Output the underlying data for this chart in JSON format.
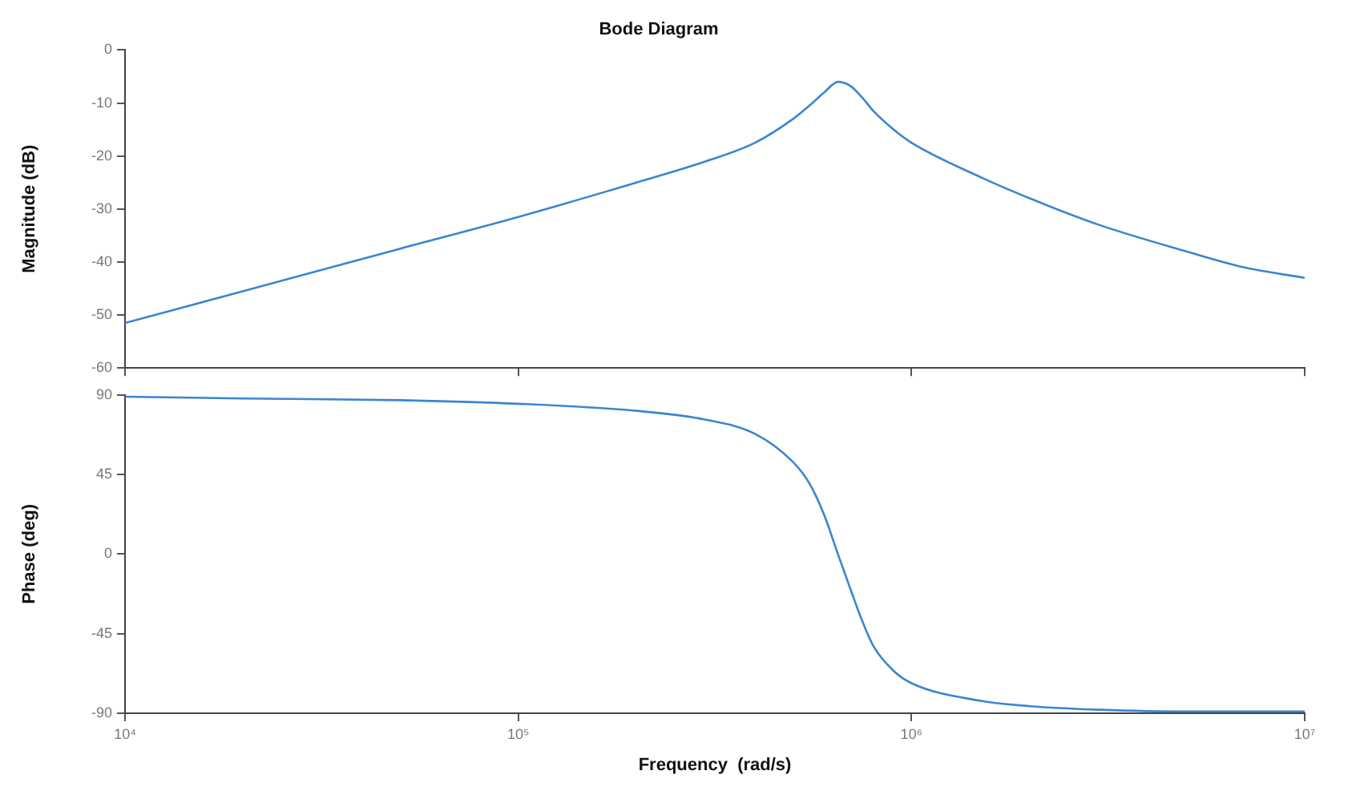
{
  "chart_data": [
    {
      "type": "line",
      "title": "Bode Diagram",
      "ylabel": "Magnitude (dB)",
      "log": "x",
      "grid": false,
      "legend": false,
      "tick_labels": "y",
      "marker": "none",
      "line_style": "solid",
      "x": [
        10000,
        20000,
        50000,
        100000,
        200000,
        300000,
        400000,
        500000,
        550000,
        600000,
        650000,
        700000,
        750000,
        800000,
        900000,
        1000000,
        1500000,
        2000000,
        3000000,
        5000000,
        7000000,
        10000000
      ],
      "series": [
        {
          "color": "#3a86d0",
          "values": [
            -51.5,
            -45.5,
            -37.5,
            -31.5,
            -25,
            -21,
            -17.5,
            -13,
            -10.5,
            -8,
            -6,
            -6.8,
            -9,
            -11.5,
            -15,
            -17.5,
            -24,
            -28,
            -33,
            -38,
            -41,
            -43
          ]
        }
      ],
      "xlim": [
        10000,
        10000000
      ],
      "xticks": [
        10000,
        100000,
        1000000,
        10000000
      ],
      "ylim": [
        -60,
        0
      ],
      "yticks": [
        0,
        -10,
        -20,
        -30,
        -40,
        -50,
        -60
      ]
    },
    {
      "type": "line",
      "xlabel": "Frequency  (rad/s)",
      "ylabel": "Phase (deg)",
      "log": "x",
      "grid": false,
      "legend": false,
      "marker": "none",
      "line_style": "solid",
      "x": [
        10000,
        20000,
        50000,
        100000,
        200000,
        300000,
        400000,
        500000,
        550000,
        600000,
        650000,
        700000,
        750000,
        800000,
        900000,
        1000000,
        1500000,
        2000000,
        3000000,
        5000000,
        10000000
      ],
      "series": [
        {
          "color": "#3a86d0",
          "values": [
            89,
            88,
            87,
            85,
            81,
            76,
            68,
            52,
            40,
            22,
            0,
            -20,
            -38,
            -52,
            -66,
            -73,
            -83,
            -86,
            -88,
            -89,
            -89
          ]
        }
      ],
      "xlim": [
        10000,
        10000000
      ],
      "xticks": [
        {
          "value": 10000,
          "label": "10⁴"
        },
        {
          "value": 100000,
          "label": "10⁵"
        },
        {
          "value": 1000000,
          "label": "10⁶"
        },
        {
          "value": 10000000,
          "label": "10⁷"
        }
      ],
      "ylim": [
        -90,
        90
      ],
      "yticks": [
        90,
        45,
        0,
        -45,
        -90
      ]
    }
  ]
}
